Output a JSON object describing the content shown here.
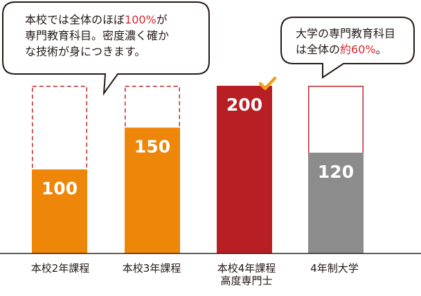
{
  "chart_data": {
    "type": "bar",
    "categories": [
      {
        "line1": "本校2年課程",
        "line2": ""
      },
      {
        "line1": "本校3年課程",
        "line2": ""
      },
      {
        "line1": "本校4年課程",
        "line2": "高度専門士"
      },
      {
        "line1": "4年制大学",
        "line2": ""
      }
    ],
    "values": [
      100,
      150,
      200,
      120
    ],
    "total": 200,
    "ylim": [
      0,
      200
    ],
    "bar_colors": [
      "#ee8609",
      "#ee8609",
      "#b81f25",
      "#8c8c8c"
    ],
    "outline_styles": [
      "dashed",
      "dashed",
      "none",
      "solid"
    ],
    "outline_color": "#c0282d",
    "value_label_color": "#ffffff"
  },
  "callouts": [
    {
      "lines": [
        {
          "pre": "本校では全体のほぼ",
          "hl": "100%",
          "post": "が"
        },
        {
          "pre": "専門教育科目。密度濃く確か",
          "hl": "",
          "post": ""
        },
        {
          "pre": "な技術が身につきます。",
          "hl": "",
          "post": ""
        }
      ]
    },
    {
      "lines": [
        {
          "pre": "大学の専門教育科目",
          "hl": "",
          "post": ""
        },
        {
          "pre": "は全体の",
          "hl": "約60%",
          "post": "。"
        }
      ]
    }
  ],
  "colors": {
    "highlight": "#d7272f",
    "check": "#f0a01a",
    "axis": "#231815"
  },
  "icons": {
    "check": "check-mark-icon"
  }
}
